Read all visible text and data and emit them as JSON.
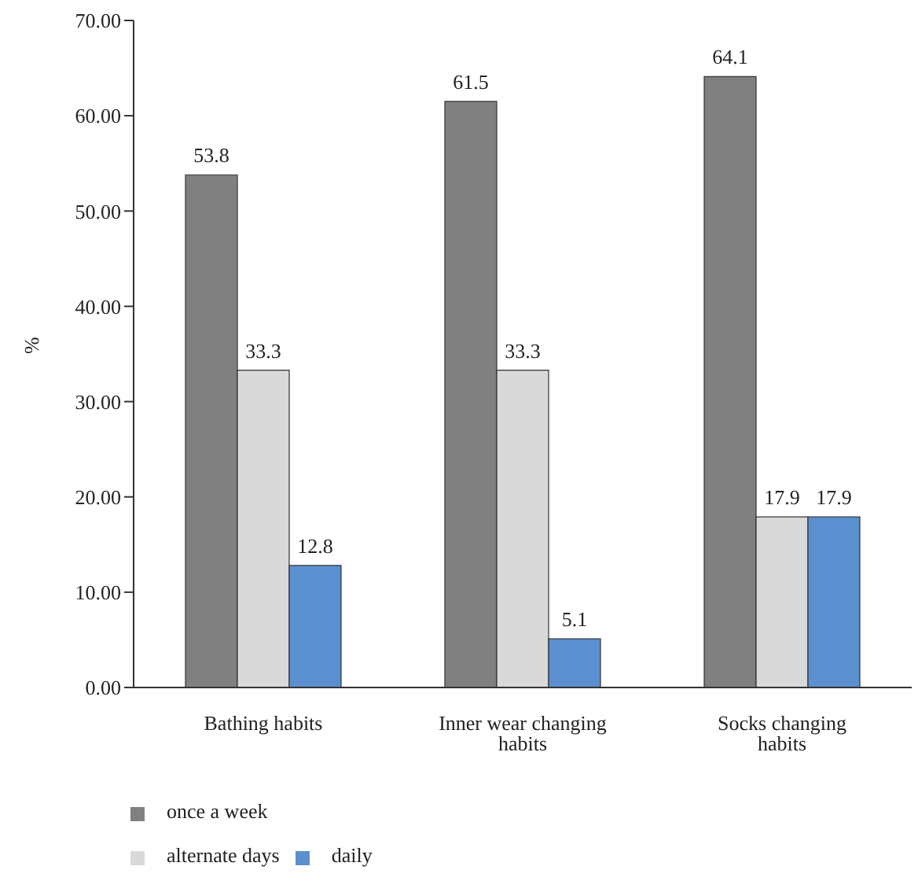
{
  "chart_data": {
    "type": "bar",
    "ylabel": "%",
    "categories": [
      "Bathing habits",
      "Inner wear changing habits",
      "Socks changing habits"
    ],
    "series": [
      {
        "name": "once a week",
        "color": "#808080",
        "values": [
          53.8,
          61.5,
          64.1
        ]
      },
      {
        "name": "alternate days",
        "color": "#d9d9d9",
        "values": [
          33.3,
          33.3,
          17.9
        ]
      },
      {
        "name": "daily",
        "color": "#5b8fd0",
        "values": [
          12.8,
          5.1,
          17.9
        ]
      }
    ],
    "ylim": [
      0,
      70
    ],
    "yticks": [
      {
        "value": 0,
        "label": "0.00"
      },
      {
        "value": 10,
        "label": "10.00"
      },
      {
        "value": 20,
        "label": "20.00"
      },
      {
        "value": 30,
        "label": "30.00"
      },
      {
        "value": 40,
        "label": "40.00"
      },
      {
        "value": 50,
        "label": "50.00"
      },
      {
        "value": 60,
        "label": "60.00"
      },
      {
        "value": 70,
        "label": "70.00"
      }
    ],
    "data_labels": true,
    "legend": "bottom",
    "grid": false
  }
}
